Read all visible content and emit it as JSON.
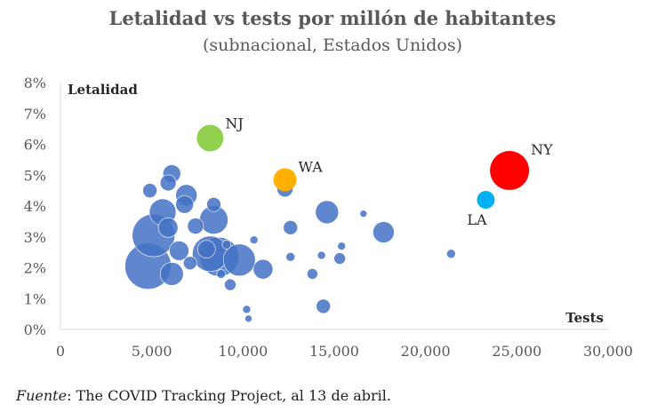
{
  "chart_data": {
    "type": "scatter",
    "title": "Letalidad vs tests por millón de habitantes",
    "subtitle": "(subnacional, Estados Unidos)",
    "xlabel": "Tests",
    "ylabel": "Letalidad",
    "xlim": [
      0,
      30000
    ],
    "ylim": [
      0,
      8
    ],
    "xticks": [
      0,
      5000,
      10000,
      15000,
      20000,
      25000,
      30000
    ],
    "xtick_labels": [
      "0",
      "5,000",
      "10,000",
      "15,000",
      "20,000",
      "25,000",
      "30,000"
    ],
    "yticks": [
      0,
      1,
      2,
      3,
      4,
      5,
      6,
      7,
      8
    ],
    "ytick_labels": [
      "0%",
      "1%",
      "2%",
      "3%",
      "4%",
      "5%",
      "6%",
      "7%",
      "8%"
    ],
    "base_color": "#4472C4",
    "points": [
      {
        "x": 4800,
        "y": 2.05,
        "size": 52
      },
      {
        "x": 5100,
        "y": 3.05,
        "size": 48
      },
      {
        "x": 8200,
        "y": 2.45,
        "size": 40
      },
      {
        "x": 8700,
        "y": 2.35,
        "size": 44
      },
      {
        "x": 9800,
        "y": 2.25,
        "size": 36
      },
      {
        "x": 5600,
        "y": 3.8,
        "size": 30
      },
      {
        "x": 6100,
        "y": 1.8,
        "size": 26
      },
      {
        "x": 8400,
        "y": 3.55,
        "size": 32
      },
      {
        "x": 6500,
        "y": 2.55,
        "size": 22
      },
      {
        "x": 8000,
        "y": 2.6,
        "size": 20
      },
      {
        "x": 6900,
        "y": 4.35,
        "size": 24
      },
      {
        "x": 5900,
        "y": 3.3,
        "size": 22
      },
      {
        "x": 6800,
        "y": 4.05,
        "size": 20
      },
      {
        "x": 14600,
        "y": 3.8,
        "size": 26
      },
      {
        "x": 17700,
        "y": 3.15,
        "size": 24
      },
      {
        "x": 11100,
        "y": 1.95,
        "size": 22
      },
      {
        "x": 6100,
        "y": 5.05,
        "size": 20
      },
      {
        "x": 5900,
        "y": 4.75,
        "size": 18
      },
      {
        "x": 7400,
        "y": 3.35,
        "size": 18
      },
      {
        "x": 12300,
        "y": 4.55,
        "size": 18
      },
      {
        "x": 4900,
        "y": 4.5,
        "size": 16
      },
      {
        "x": 8400,
        "y": 4.05,
        "size": 16
      },
      {
        "x": 12600,
        "y": 3.3,
        "size": 16
      },
      {
        "x": 14400,
        "y": 0.75,
        "size": 16
      },
      {
        "x": 7100,
        "y": 2.15,
        "size": 15
      },
      {
        "x": 9300,
        "y": 1.45,
        "size": 13
      },
      {
        "x": 15300,
        "y": 2.3,
        "size": 13
      },
      {
        "x": 13800,
        "y": 1.8,
        "size": 12
      },
      {
        "x": 12600,
        "y": 2.35,
        "size": 10
      },
      {
        "x": 8800,
        "y": 1.8,
        "size": 10
      },
      {
        "x": 9100,
        "y": 2.75,
        "size": 10
      },
      {
        "x": 21400,
        "y": 2.45,
        "size": 10
      },
      {
        "x": 10600,
        "y": 2.9,
        "size": 9
      },
      {
        "x": 10200,
        "y": 0.65,
        "size": 9
      },
      {
        "x": 14300,
        "y": 2.4,
        "size": 9
      },
      {
        "x": 15400,
        "y": 2.7,
        "size": 9
      },
      {
        "x": 16600,
        "y": 3.75,
        "size": 8
      },
      {
        "x": 10300,
        "y": 0.35,
        "size": 8
      }
    ],
    "highlighted": [
      {
        "label": "NJ",
        "x": 8200,
        "y": 6.2,
        "size": 30,
        "color": "#92D050",
        "label_pos": "upper-right"
      },
      {
        "label": "WA",
        "x": 12300,
        "y": 4.85,
        "size": 26,
        "color": "#FFB000",
        "label_pos": "upper-right"
      },
      {
        "label": "NY",
        "x": 24600,
        "y": 5.15,
        "size": 44,
        "color": "#FF0000",
        "label_pos": "upper-right"
      },
      {
        "label": "LA",
        "x": 23300,
        "y": 4.2,
        "size": 20,
        "color": "#00B0F0",
        "label_pos": "below-left"
      }
    ]
  },
  "source": {
    "label": "Fuente",
    "text": ": The COVID Tracking Project, al 13 de abril."
  }
}
